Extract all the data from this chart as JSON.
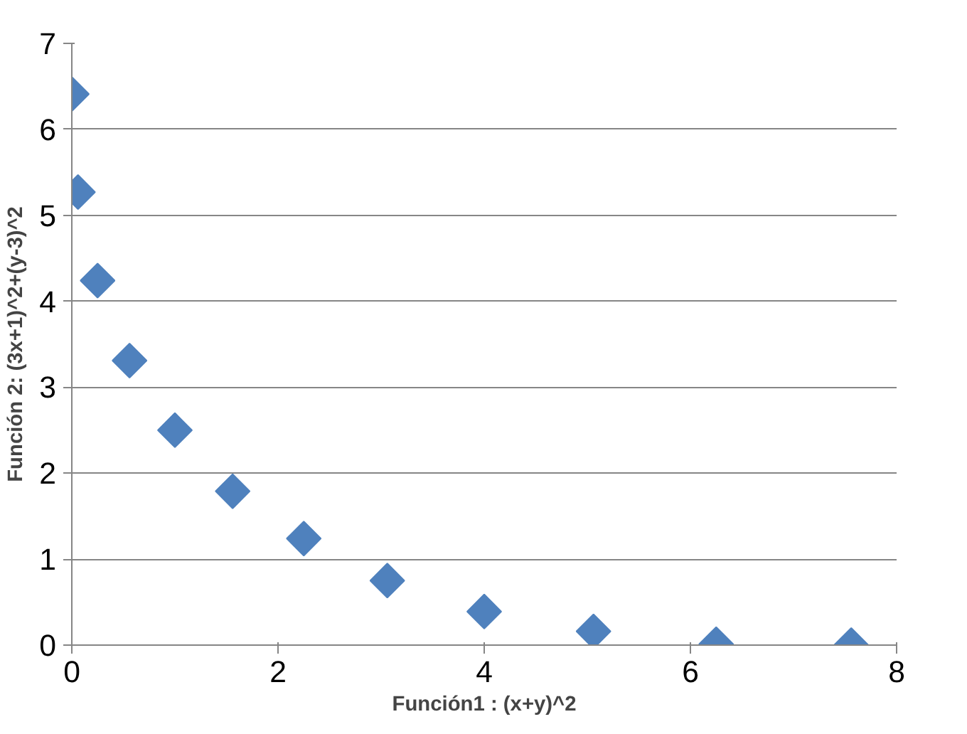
{
  "chart_data": {
    "type": "scatter",
    "xlabel": "Función1 : (x+y)^2",
    "ylabel": "Función 2: (3x+1)^2+(y-3)^2",
    "x": [
      0,
      0.06,
      0.25,
      0.56,
      1,
      1.56,
      2.25,
      3.06,
      4,
      5.06,
      6.25,
      7.56
    ],
    "values": [
      6.41,
      5.27,
      4.24,
      3.31,
      2.5,
      1.79,
      1.24,
      0.75,
      0.39,
      0.16,
      0.01,
      0
    ],
    "color": "#4f81bd",
    "marker": "diamond",
    "grid": "y",
    "xlim": [
      0,
      8
    ],
    "ylim": [
      0,
      7
    ],
    "xticks": [
      0,
      2,
      4,
      6,
      8
    ],
    "yticks": [
      0,
      1,
      2,
      3,
      4,
      5,
      6,
      7
    ]
  }
}
